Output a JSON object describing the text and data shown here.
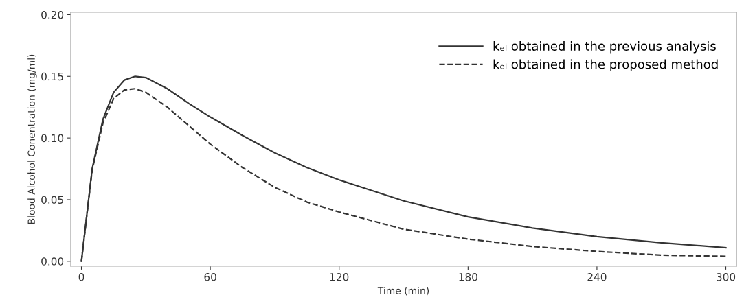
{
  "chart_data": {
    "type": "line",
    "xlabel": "Time (min)",
    "ylabel": "Blood Alcohol Conentration (mg/ml)",
    "x": [
      0,
      5,
      10,
      15,
      20,
      25,
      30,
      40,
      50,
      60,
      75,
      90,
      105,
      120,
      150,
      180,
      210,
      240,
      270,
      300
    ],
    "series": [
      {
        "name": "kₑₗ obtained in the previous analysis",
        "color": "#333333",
        "line_style": "solid",
        "values": [
          0,
          0.075,
          0.115,
          0.137,
          0.147,
          0.15,
          0.149,
          0.14,
          0.128,
          0.117,
          0.102,
          0.088,
          0.076,
          0.066,
          0.049,
          0.036,
          0.027,
          0.02,
          0.015,
          0.011
        ]
      },
      {
        "name": "kₑₗ obtained in the proposed method",
        "color": "#333333",
        "line_style": "dashed",
        "values": [
          0,
          0.074,
          0.112,
          0.132,
          0.139,
          0.14,
          0.137,
          0.125,
          0.11,
          0.095,
          0.076,
          0.06,
          0.048,
          0.04,
          0.026,
          0.018,
          0.012,
          0.008,
          0.005,
          0.004
        ]
      }
    ],
    "xlim": [
      -5,
      305
    ],
    "ylim": [
      -0.004,
      0.202
    ],
    "xticks": [
      0,
      60,
      120,
      180,
      240,
      300
    ],
    "yticks": [
      {
        "value": 0,
        "label": "0.00"
      },
      {
        "value": 0.05,
        "label": "0.05"
      },
      {
        "value": 0.1,
        "label": "0.10"
      },
      {
        "value": 0.15,
        "label": "0.15"
      },
      {
        "value": 0.2,
        "label": "0.20"
      }
    ],
    "grid": false,
    "legend": "top right",
    "marker": "none"
  }
}
